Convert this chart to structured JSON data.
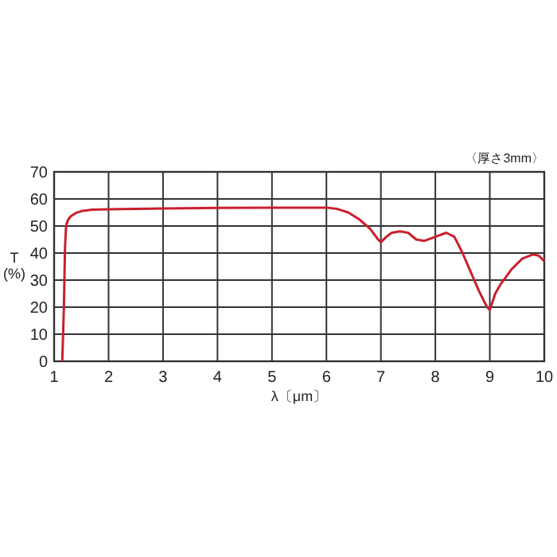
{
  "chart_data": {
    "type": "line",
    "xlabel": "λ〔μm〕",
    "ylabel": "T\n(%)",
    "annotations": [
      "〈厚さ3mm〉"
    ],
    "x": [
      1.15,
      1.18,
      1.2,
      1.22,
      1.25,
      1.3,
      1.4,
      1.5,
      1.7,
      2,
      3,
      4,
      5,
      6,
      6.2,
      6.4,
      6.6,
      6.8,
      6.95,
      7,
      7.1,
      7.2,
      7.35,
      7.5,
      7.65,
      7.8,
      8,
      8.2,
      8.35,
      8.5,
      8.65,
      8.8,
      8.95,
      9,
      9.1,
      9.2,
      9.4,
      9.6,
      9.8,
      9.9,
      10
    ],
    "series": [
      {
        "color": "#c8202e",
        "values": [
          0,
          20,
          42,
          50,
          52,
          53.5,
          54.8,
          55.5,
          56,
          56.2,
          56.5,
          56.7,
          56.8,
          56.8,
          56.3,
          55,
          52.5,
          49,
          45,
          44,
          46,
          47.5,
          48,
          47.5,
          45,
          44.5,
          46,
          47.5,
          46,
          40,
          33,
          26,
          20,
          19,
          25,
          28.5,
          34,
          38,
          39.5,
          39,
          37
        ]
      }
    ],
    "xlim": [
      1,
      10
    ],
    "ylim": [
      0,
      70
    ],
    "xticks": [
      1,
      2,
      3,
      4,
      5,
      6,
      7,
      8,
      9,
      10
    ],
    "yticks": [
      0,
      10,
      20,
      30,
      40,
      50,
      60,
      70
    ],
    "grid": true
  }
}
